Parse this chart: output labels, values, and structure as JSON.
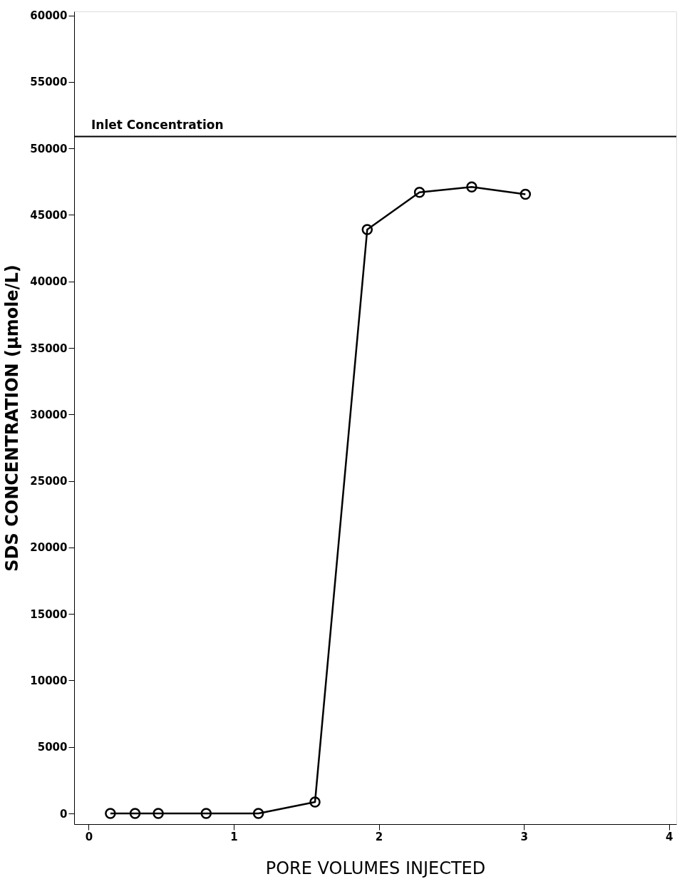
{
  "chart_data": {
    "type": "line",
    "xlabel": "PORE VOLUMES INJECTED",
    "ylabel": "SDS CONCENTRATION (μmole/L)",
    "series": [
      {
        "color": "#000000",
        "x": [
          0.15,
          0.32,
          0.48,
          0.81,
          1.17,
          1.56,
          1.92,
          2.28,
          2.64,
          3.01
        ],
        "values": [
          0,
          0,
          0,
          0,
          0,
          860,
          43900,
          46700,
          47100,
          46550
        ]
      }
    ],
    "xlim": [
      -0.1,
      4.05
    ],
    "ylim": [
      -800,
      60300
    ],
    "xticks": [
      0,
      1,
      2,
      3,
      4
    ],
    "yticks": [
      0,
      5000,
      10000,
      15000,
      20000,
      25000,
      30000,
      35000,
      40000,
      45000,
      50000,
      55000,
      60000
    ],
    "ref_lines": [
      {
        "axis": "y",
        "value": 50900,
        "label": "Inlet Concentration",
        "color": "#000000",
        "line_style": "solid"
      }
    ],
    "marker": "circle",
    "line_style": "solid",
    "grid": false
  }
}
